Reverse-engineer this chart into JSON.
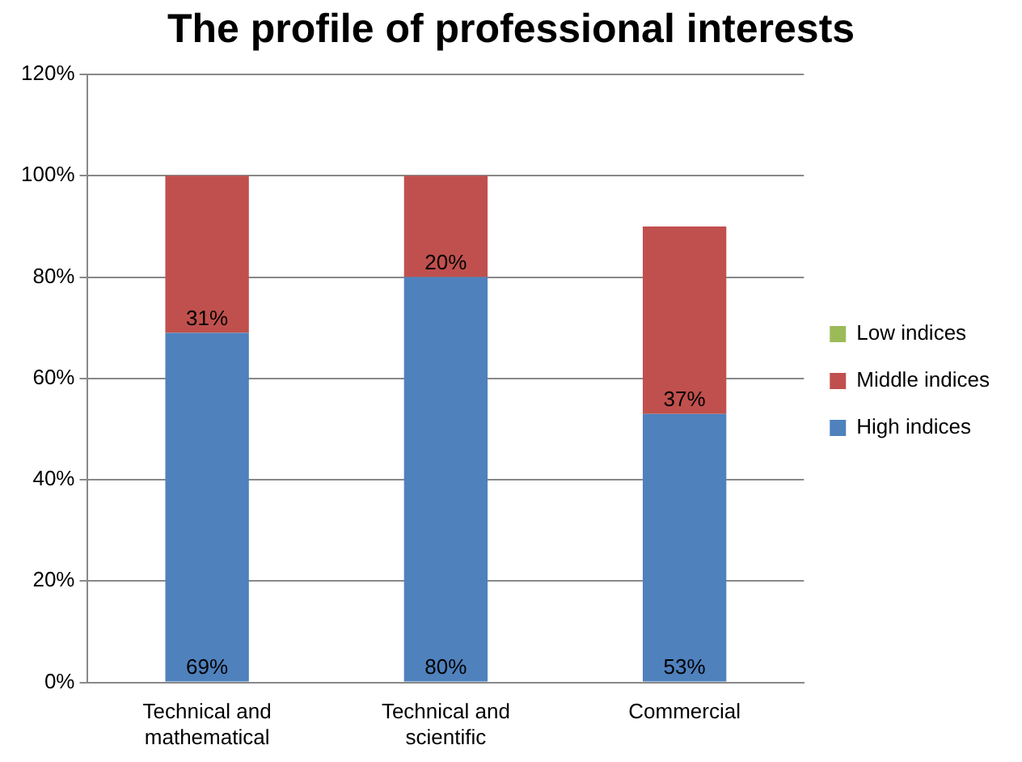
{
  "chart_data": {
    "type": "bar",
    "title": "The profile of professional interests",
    "categories": [
      "Technical and mathematical",
      "Technical and scientific",
      "Commercial"
    ],
    "stacked": true,
    "series": [
      {
        "name": "High indices",
        "color": "#4f81bd",
        "values": [
          69,
          80,
          53
        ],
        "value_labels": [
          "69%",
          "80%",
          "53%"
        ]
      },
      {
        "name": "Middle indices",
        "color": "#c0504d",
        "values": [
          31,
          20,
          37
        ],
        "value_labels": [
          "31%",
          "20%",
          "37%"
        ]
      },
      {
        "name": "Low indices",
        "color": "#9bbb59",
        "values": [
          null,
          null,
          null
        ]
      }
    ],
    "ylim": [
      0,
      120
    ],
    "yticks": [
      {
        "value": 0,
        "label": "0%"
      },
      {
        "value": 20,
        "label": "20%"
      },
      {
        "value": 40,
        "label": "40%"
      },
      {
        "value": 60,
        "label": "60%"
      },
      {
        "value": 80,
        "label": "80%"
      },
      {
        "value": 100,
        "label": "100%"
      },
      {
        "value": 120,
        "label": "120%"
      }
    ],
    "grid": "y",
    "legend": "right"
  }
}
